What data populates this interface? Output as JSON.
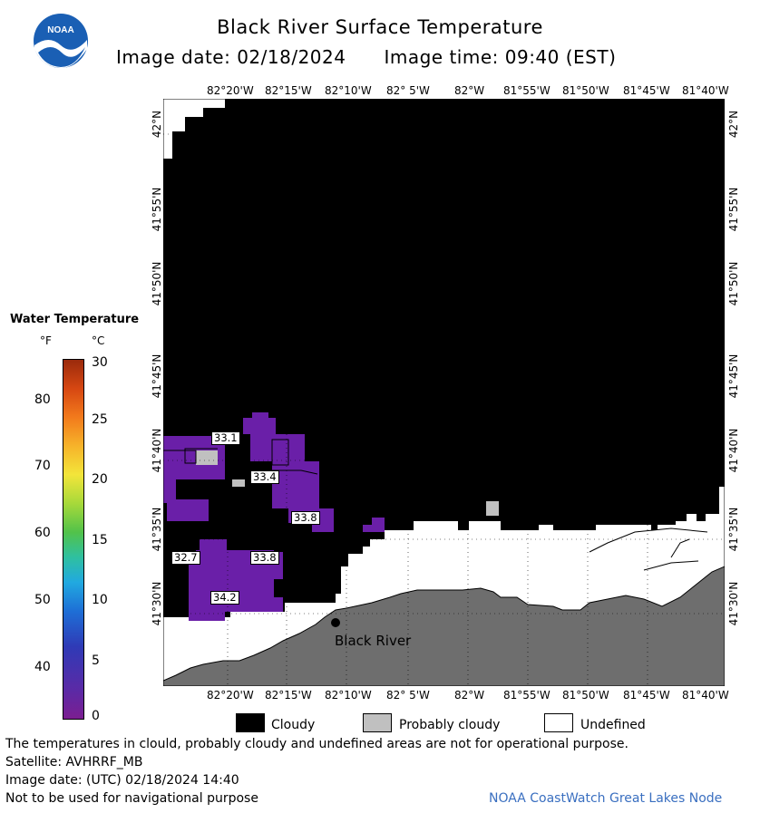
{
  "header": {
    "title": "Black River Surface Temperature",
    "image_date": "Image date: 02/18/2024",
    "image_time": "Image time: 09:40 (EST)"
  },
  "logo": {
    "text": "NOAA",
    "icon": "noaa-logo-icon"
  },
  "map": {
    "lon_labels": [
      "82°20'W",
      "82°15'W",
      "82°10'W",
      "82° 5'W",
      "82°W",
      "81°55'W",
      "81°50'W",
      "81°45'W",
      "81°40'W"
    ],
    "lat_labels": [
      "42°N",
      "41°55'N",
      "41°50'N",
      "41°45'N",
      "41°40'N",
      "41°35'N",
      "41°30'N"
    ],
    "temperature_callouts": [
      "33.1",
      "33.4",
      "33.8",
      "32.7",
      "33.8",
      "34.2"
    ],
    "location_label": "Black River",
    "colors": {
      "cloudy": "#000000",
      "probably_cloudy": "#c0c0c0",
      "land": "#6e6e6e",
      "undefined": "#ffffff",
      "water_cold": "#6a1fa8"
    }
  },
  "legend": {
    "title": "Water Temperature",
    "unit_f": "°F",
    "unit_c": "°C",
    "f_ticks": [
      "80",
      "70",
      "60",
      "50",
      "40"
    ],
    "c_ticks": [
      "30",
      "25",
      "20",
      "15",
      "10",
      "5",
      "0"
    ],
    "range_c": [
      0,
      30
    ]
  },
  "key": {
    "cloudy": "Cloudy",
    "probably_cloudy": "Probably cloudy",
    "undefined": "Undefined"
  },
  "footer": {
    "disclaimer": "The temperatures in clould, probably cloudy and undefined areas are not for operational purpose.",
    "satellite": "Satellite: AVHRRF_MB",
    "utc_date": "Image date: (UTC) 02/18/2024  14:40",
    "nav_warning": "Not to be used for navigational purpose",
    "node": "NOAA CoastWatch Great Lakes Node"
  }
}
